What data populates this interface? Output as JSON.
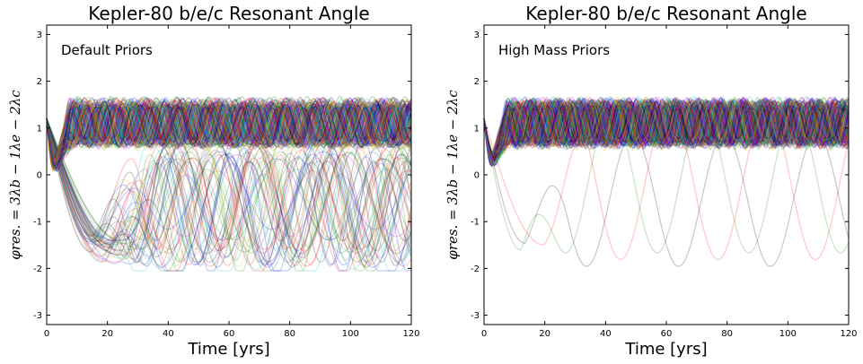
{
  "chart_data": [
    {
      "type": "line",
      "title": "Kepler-80 b/e/c Resonant Angle",
      "annotation": "Default Priors",
      "xlabel": "Time [yrs]",
      "ylabel": "φres. = 3λb − 1λe − 2λc",
      "xlim": [
        0,
        120
      ],
      "ylim": [
        -3.2,
        3.2
      ],
      "xticks": [
        "0",
        "20",
        "40",
        "60",
        "80",
        "100",
        "120"
      ],
      "yticks": [
        "-3",
        "-2",
        "-1",
        "0",
        "1",
        "2",
        "3"
      ],
      "series_description": "ensemble of posterior samples",
      "n_librating_series": 120,
      "n_wide_series": 45,
      "librating": {
        "start": 1.2,
        "dip_min": 0.2,
        "dip_time": 3,
        "center": 1.1,
        "amplitude": 0.42,
        "period_range_yrs": [
          8,
          12
        ]
      },
      "wide": {
        "start": 1.2,
        "dip_min": -1.6,
        "dip_time": 20,
        "center": -0.6,
        "amplitude": 1.1,
        "period_range_yrs": [
          18,
          35
        ]
      }
    },
    {
      "type": "line",
      "title": "Kepler-80 b/e/c Resonant Angle",
      "annotation": "High Mass Priors",
      "xlabel": "Time [yrs]",
      "ylabel": "φres. = 3λb − 1λe − 2λc",
      "xlim": [
        0,
        120
      ],
      "ylim": [
        -3.2,
        3.2
      ],
      "xticks": [
        "0",
        "20",
        "40",
        "60",
        "80",
        "100",
        "120"
      ],
      "yticks": [
        "-3",
        "-2",
        "-1",
        "0",
        "1",
        "2",
        "3"
      ],
      "series_description": "ensemble of posterior samples",
      "n_librating_series": 150,
      "n_wide_series": 3,
      "librating": {
        "start": 1.2,
        "dip_min": 0.3,
        "dip_time": 3,
        "center": 1.1,
        "amplitude": 0.42,
        "period_range_yrs": [
          7,
          10
        ]
      },
      "wide": {
        "start": 1.2,
        "dip_min": -1.7,
        "dip_time": 16,
        "center": -0.3,
        "amplitude": 1.4,
        "period_range_yrs": [
          30,
          42
        ]
      }
    }
  ],
  "colors": [
    "#0000ff",
    "#008000",
    "#ff0000",
    "#00bfbf",
    "#bf00bf",
    "#bfbf00",
    "#000000"
  ]
}
